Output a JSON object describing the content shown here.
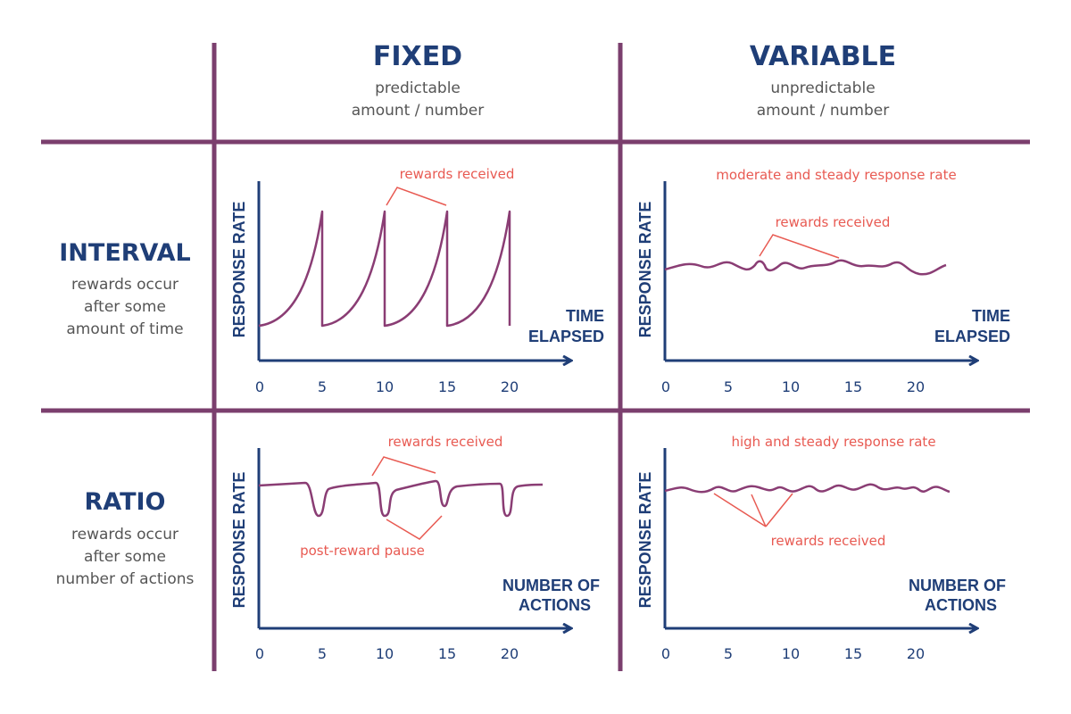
{
  "columns": [
    {
      "title": "FIXED",
      "subtitle": [
        "predictable",
        "amount / number"
      ]
    },
    {
      "title": "VARIABLE",
      "subtitle": [
        "unpredictable",
        "amount / number"
      ]
    }
  ],
  "rows": [
    {
      "title": "INTERVAL",
      "subtitle": [
        "rewards occur",
        "after some",
        "amount of time"
      ]
    },
    {
      "title": "RATIO",
      "subtitle": [
        "rewards occur",
        "after some",
        "number of actions"
      ]
    }
  ],
  "colors": {
    "grid": "#7b3f6e",
    "axis": "#1f3e77",
    "curve": "#8a3d74",
    "annotation": "#e85a52"
  },
  "chart_data": [
    {
      "id": "fixed-interval",
      "type": "line",
      "ylabel": "RESPONSE RATE",
      "xlabel": [
        "TIME",
        "ELAPSED"
      ],
      "xticks": [
        0,
        5,
        10,
        15,
        20
      ],
      "annotations": [
        "rewards received"
      ],
      "rewards_at": [
        5,
        10,
        15,
        20
      ]
    },
    {
      "id": "variable-interval",
      "type": "line",
      "ylabel": "RESPONSE RATE",
      "xlabel": [
        "TIME",
        "ELAPSED"
      ],
      "xticks": [
        0,
        5,
        10,
        15,
        20
      ],
      "annotations": [
        "moderate and steady response rate",
        "rewards received"
      ]
    },
    {
      "id": "fixed-ratio",
      "type": "line",
      "ylabel": "RESPONSE RATE",
      "xlabel": [
        "NUMBER OF",
        "ACTIONS"
      ],
      "xticks": [
        0,
        5,
        10,
        15,
        20
      ],
      "annotations": [
        "rewards received",
        "post-reward pause"
      ],
      "rewards_at": [
        5,
        10,
        15,
        20
      ]
    },
    {
      "id": "variable-ratio",
      "type": "line",
      "ylabel": "RESPONSE RATE",
      "xlabel": [
        "NUMBER OF",
        "ACTIONS"
      ],
      "xticks": [
        0,
        5,
        10,
        15,
        20
      ],
      "annotations": [
        "high and steady response rate",
        "rewards received"
      ]
    }
  ]
}
